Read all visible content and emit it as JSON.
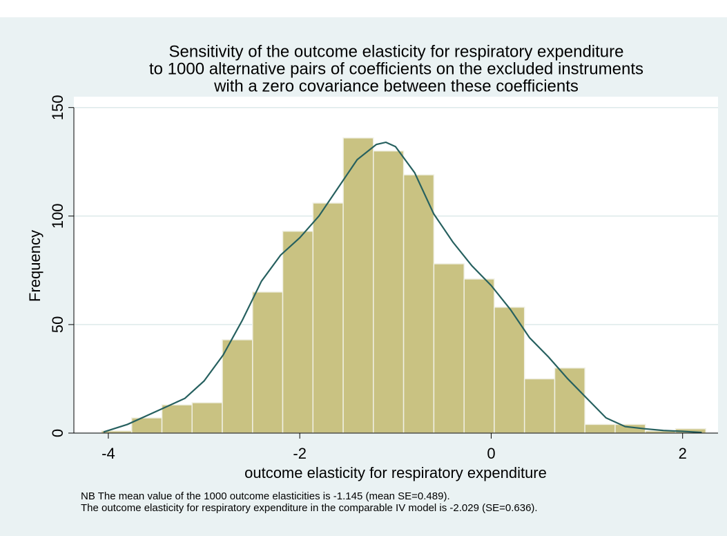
{
  "chart_data": {
    "type": "histogram",
    "title": [
      "Sensitivity of the outcome elasticity for respiratory expenditure",
      "to 1000 alternative pairs of coefficients on the excluded instruments",
      "with a zero covariance between these coefficients"
    ],
    "xlabel": "outcome elasticity for respiratory expenditure",
    "ylabel": "Frequency",
    "note": [
      "NB The mean value of the 1000 outcome elasticities is -1.145 (mean SE=0.489).",
      "The outcome elasticity for respiratory expenditure in the comparable IV model is -2.029 (SE=0.636)."
    ],
    "bins": [
      -4.072,
      -3.756,
      -3.44,
      -3.125,
      -2.809,
      -2.493,
      -2.178,
      -1.862,
      -1.546,
      -1.231,
      -0.915,
      -0.599,
      -0.283,
      0.032,
      0.348,
      0.664,
      0.979,
      1.295,
      1.611,
      1.926,
      2.242
    ],
    "counts": [
      1,
      7,
      13,
      14,
      43,
      65,
      93,
      106,
      136,
      130,
      119,
      78,
      71,
      58,
      25,
      30,
      4,
      4,
      1,
      2
    ],
    "color": "#c9c282",
    "density": {
      "x": [
        -4.05,
        -3.8,
        -3.5,
        -3.2,
        -3.0,
        -2.8,
        -2.6,
        -2.4,
        -2.2,
        -2.0,
        -1.8,
        -1.6,
        -1.4,
        -1.2,
        -1.1,
        -1.0,
        -0.8,
        -0.6,
        -0.4,
        -0.2,
        0,
        0.2,
        0.4,
        0.6,
        0.8,
        1.0,
        1.2,
        1.4,
        1.6,
        1.8,
        2.0,
        2.2
      ],
      "values": [
        0.5,
        4,
        10,
        16,
        24,
        36,
        52,
        70,
        82,
        90,
        100,
        113,
        126,
        133,
        134,
        132,
        120,
        101,
        88,
        77,
        68,
        57,
        44,
        35,
        25,
        16,
        7,
        3,
        2,
        1.2,
        0.8,
        0.3
      ],
      "color": "#26605f"
    },
    "xlim": [
      -4.36,
      2.37
    ],
    "ylim": [
      0,
      155
    ],
    "xticks": [
      -4,
      -2,
      0,
      2
    ],
    "yticks": [
      0,
      50,
      100,
      150
    ],
    "grid": true
  }
}
